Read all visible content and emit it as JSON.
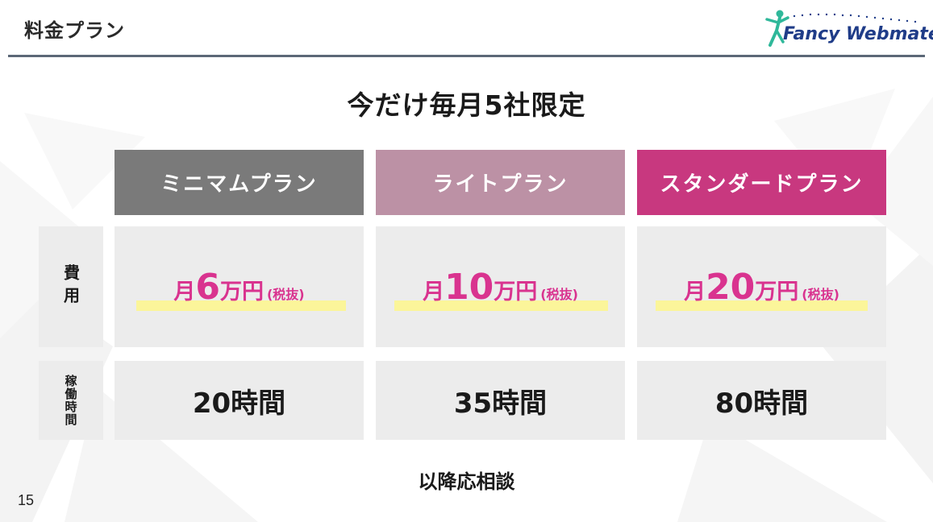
{
  "header": {
    "title": "料金プラン",
    "logo_text": "Fancy Webmate",
    "logo_colors": {
      "figure": "#2fb89a",
      "text": "#1f3c88"
    }
  },
  "headline": "今だけ毎月5社限定",
  "row_labels": {
    "cost": "費用",
    "hours": "稼働時間"
  },
  "plans": [
    {
      "name": "ミニマムプラン",
      "color": "#7a7a7a",
      "price_prefix": "月",
      "price_value": "6",
      "price_suffix": "万円",
      "price_note": "(税抜)",
      "hours": "20時間"
    },
    {
      "name": "ライトプラン",
      "color": "#bc91a5",
      "price_prefix": "月",
      "price_value": "10",
      "price_suffix": "万円",
      "price_note": "(税抜)",
      "hours": "35時間"
    },
    {
      "name": "スタンダードプラン",
      "color": "#c8387f",
      "price_prefix": "月",
      "price_value": "20",
      "price_suffix": "万円",
      "price_note": "(税抜)",
      "hours": "80時間"
    }
  ],
  "footnote": "以降応相談",
  "page_number": "15",
  "colors": {
    "price_text": "#d9338f",
    "price_highlight": "#fbf59a",
    "cell_background": "#ececec",
    "header_rule": "#5c6877"
  }
}
